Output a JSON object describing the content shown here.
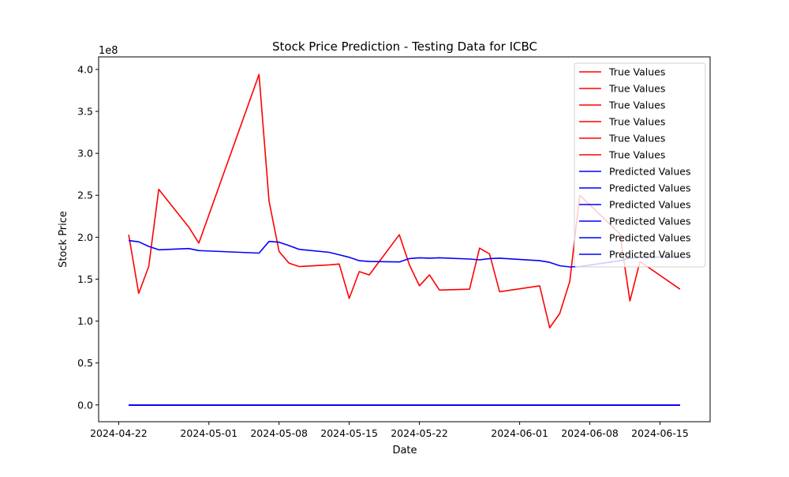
{
  "chart_data": {
    "type": "line",
    "title": "Stock Price Prediction - Testing Data for ICBC",
    "xlabel": "Date",
    "ylabel": "Stock Price",
    "y_offset_label": "1e8",
    "y_scale": 100000000,
    "xlim": [
      "2024-04-20",
      "2024-06-20"
    ],
    "ylim": [
      -20000000,
      415000000
    ],
    "grid": false,
    "legend_placement": "top-right",
    "x_ticks": [
      "2024-04-22",
      "2024-05-01",
      "2024-05-08",
      "2024-05-15",
      "2024-05-22",
      "2024-06-01",
      "2024-06-08",
      "2024-06-15"
    ],
    "y_ticks": [
      0,
      50000000,
      100000000,
      150000000,
      200000000,
      250000000,
      300000000,
      350000000,
      400000000
    ],
    "y_tick_labels": [
      "0.0",
      "0.5",
      "1.0",
      "1.5",
      "2.0",
      "2.5",
      "3.0",
      "3.5",
      "4.0"
    ],
    "series": [
      {
        "name": "True Values",
        "color": "#ff0000",
        "x": [
          "2024-04-23",
          "2024-04-24",
          "2024-04-25",
          "2024-04-26",
          "2024-04-29",
          "2024-04-30",
          "2024-05-06",
          "2024-05-07",
          "2024-05-08",
          "2024-05-09",
          "2024-05-10",
          "2024-05-13",
          "2024-05-14",
          "2024-05-15",
          "2024-05-16",
          "2024-05-17",
          "2024-05-20",
          "2024-05-21",
          "2024-05-22",
          "2024-05-23",
          "2024-05-24",
          "2024-05-27",
          "2024-05-28",
          "2024-05-29",
          "2024-05-30",
          "2024-06-03",
          "2024-06-04",
          "2024-06-05",
          "2024-06-06",
          "2024-06-07",
          "2024-06-11",
          "2024-06-12",
          "2024-06-13",
          "2024-06-17"
        ],
        "values": [
          203000000,
          133000000,
          165000000,
          257000000,
          212000000,
          193000000,
          394000000,
          243000000,
          183000000,
          169000000,
          165000000,
          167000000,
          168000000,
          127000000,
          159000000,
          155000000,
          203000000,
          167000000,
          142000000,
          155000000,
          137000000,
          138000000,
          187000000,
          180000000,
          135000000,
          142000000,
          92000000,
          109000000,
          147000000,
          250000000,
          204000000,
          124000000,
          171000000,
          138000000
        ]
      },
      {
        "name": "True Values",
        "color": "#ff0000",
        "x": [
          "2024-04-23",
          "2024-06-17"
        ],
        "values": [
          0,
          0
        ]
      },
      {
        "name": "True Values",
        "color": "#ff0000",
        "x": [
          "2024-04-23",
          "2024-06-17"
        ],
        "values": [
          0,
          0
        ]
      },
      {
        "name": "True Values",
        "color": "#ff0000",
        "x": [
          "2024-04-23",
          "2024-06-17"
        ],
        "values": [
          0,
          0
        ]
      },
      {
        "name": "True Values",
        "color": "#ff0000",
        "x": [
          "2024-04-23",
          "2024-06-17"
        ],
        "values": [
          0,
          0
        ]
      },
      {
        "name": "True Values",
        "color": "#ff0000",
        "x": [
          "2024-04-23",
          "2024-06-17"
        ],
        "values": [
          0,
          0
        ]
      },
      {
        "name": "Predicted Values",
        "color": "#0000ff",
        "x": [
          "2024-04-23",
          "2024-04-24",
          "2024-04-25",
          "2024-04-26",
          "2024-04-29",
          "2024-04-30",
          "2024-05-06",
          "2024-05-07",
          "2024-05-08",
          "2024-05-09",
          "2024-05-10",
          "2024-05-13",
          "2024-05-14",
          "2024-05-15",
          "2024-05-16",
          "2024-05-17",
          "2024-05-20",
          "2024-05-21",
          "2024-05-22",
          "2024-05-23",
          "2024-05-24",
          "2024-05-27",
          "2024-05-28",
          "2024-05-29",
          "2024-05-30",
          "2024-06-03",
          "2024-06-04",
          "2024-06-05",
          "2024-06-06",
          "2024-06-07",
          "2024-06-11",
          "2024-06-12",
          "2024-06-13",
          "2024-06-17"
        ],
        "values": [
          196000000,
          194500000,
          189000000,
          185000000,
          186500000,
          184000000,
          181000000,
          195000000,
          194000000,
          190000000,
          185500000,
          182000000,
          179000000,
          176000000,
          172000000,
          171000000,
          170500000,
          174500000,
          175500000,
          175000000,
          175500000,
          174000000,
          173000000,
          174500000,
          175000000,
          172000000,
          170000000,
          166000000,
          164500000,
          165000000,
          172000000,
          175000000,
          176000000,
          176500000
        ]
      },
      {
        "name": "Predicted Values",
        "color": "#0000ff",
        "x": [
          "2024-04-23",
          "2024-06-17"
        ],
        "values": [
          0,
          0
        ]
      },
      {
        "name": "Predicted Values",
        "color": "#0000ff",
        "x": [
          "2024-04-23",
          "2024-06-17"
        ],
        "values": [
          0,
          0
        ]
      },
      {
        "name": "Predicted Values",
        "color": "#0000ff",
        "x": [
          "2024-04-23",
          "2024-06-17"
        ],
        "values": [
          0,
          0
        ]
      },
      {
        "name": "Predicted Values",
        "color": "#0000ff",
        "x": [
          "2024-04-23",
          "2024-06-17"
        ],
        "values": [
          0,
          0
        ]
      },
      {
        "name": "Predicted Values",
        "color": "#0000ff",
        "x": [
          "2024-04-23",
          "2024-06-17"
        ],
        "values": [
          0,
          0
        ]
      }
    ]
  }
}
